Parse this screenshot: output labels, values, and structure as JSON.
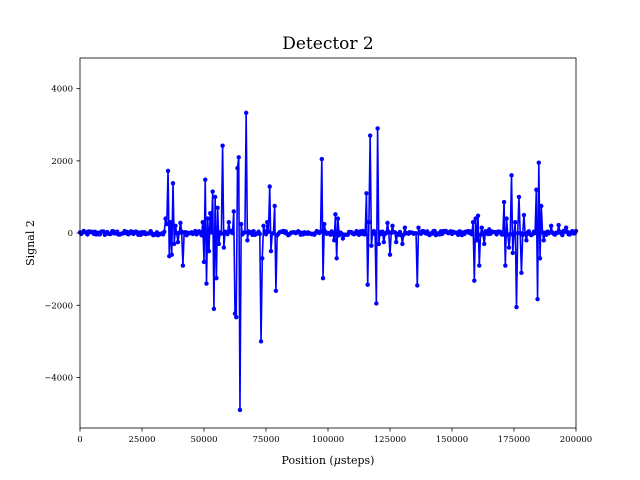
{
  "chart_data": {
    "type": "line",
    "title": "Detector 2",
    "xlabel_prefix": "Position (",
    "xlabel_mu": "μ",
    "xlabel_suffix": "steps)",
    "ylabel": "Signal 2",
    "xlim": [
      0,
      200000
    ],
    "ylim": [
      -5400,
      4850
    ],
    "xticks": [
      0,
      25000,
      50000,
      75000,
      100000,
      125000,
      150000,
      175000,
      200000
    ],
    "xtick_labels": [
      "0",
      "25000",
      "50000",
      "75000",
      "100000",
      "125000",
      "150000",
      "175000",
      "200000"
    ],
    "yticks": [
      -4000,
      -2000,
      0,
      2000,
      4000
    ],
    "ytick_labels": [
      "−4000",
      "−2000",
      "0",
      "2000",
      "4000"
    ],
    "grid": false,
    "legend": "none",
    "line_color": "#0000ff",
    "marker": "circle",
    "series": [
      {
        "name": "",
        "spikes": [
          {
            "x": 34500,
            "y": 400
          },
          {
            "x": 35000,
            "y": 250
          },
          {
            "x": 35500,
            "y": 1720
          },
          {
            "x": 36000,
            "y": -640
          },
          {
            "x": 36500,
            "y": 300
          },
          {
            "x": 37000,
            "y": -600
          },
          {
            "x": 37500,
            "y": 1380
          },
          {
            "x": 38000,
            "y": -300
          },
          {
            "x": 38500,
            "y": 200
          },
          {
            "x": 39500,
            "y": -250
          },
          {
            "x": 40500,
            "y": 280
          },
          {
            "x": 41500,
            "y": -900
          },
          {
            "x": 49500,
            "y": 300
          },
          {
            "x": 50000,
            "y": -800
          },
          {
            "x": 50500,
            "y": 1480
          },
          {
            "x": 51000,
            "y": -1400
          },
          {
            "x": 51500,
            "y": 400
          },
          {
            "x": 52000,
            "y": -500
          },
          {
            "x": 52500,
            "y": 550
          },
          {
            "x": 53500,
            "y": 1150
          },
          {
            "x": 54000,
            "y": -2100
          },
          {
            "x": 54500,
            "y": 1000
          },
          {
            "x": 55000,
            "y": -1250
          },
          {
            "x": 55500,
            "y": 700
          },
          {
            "x": 56000,
            "y": -300
          },
          {
            "x": 57500,
            "y": 2420
          },
          {
            "x": 58000,
            "y": -400
          },
          {
            "x": 60000,
            "y": 300
          },
          {
            "x": 62000,
            "y": 600
          },
          {
            "x": 62500,
            "y": -2230
          },
          {
            "x": 63000,
            "y": -2330
          },
          {
            "x": 63500,
            "y": 1800
          },
          {
            "x": 64000,
            "y": 1100
          },
          {
            "x": 64200,
            "y": 2100
          },
          {
            "x": 64500,
            "y": -4900
          },
          {
            "x": 65000,
            "y": 250
          },
          {
            "x": 67000,
            "y": 3330
          },
          {
            "x": 67500,
            "y": -200
          },
          {
            "x": 73000,
            "y": -3000
          },
          {
            "x": 73500,
            "y": -700
          },
          {
            "x": 74000,
            "y": 200
          },
          {
            "x": 75500,
            "y": 300
          },
          {
            "x": 76500,
            "y": 1290
          },
          {
            "x": 77000,
            "y": -500
          },
          {
            "x": 78500,
            "y": 750
          },
          {
            "x": 79000,
            "y": -1600
          },
          {
            "x": 97500,
            "y": 2050
          },
          {
            "x": 97800,
            "y": -1250
          },
          {
            "x": 98500,
            "y": 250
          },
          {
            "x": 102500,
            "y": -200
          },
          {
            "x": 103000,
            "y": 520
          },
          {
            "x": 103500,
            "y": -700
          },
          {
            "x": 104000,
            "y": 400
          },
          {
            "x": 106000,
            "y": -150
          },
          {
            "x": 115500,
            "y": 1100
          },
          {
            "x": 116000,
            "y": -1430
          },
          {
            "x": 116500,
            "y": 300
          },
          {
            "x": 117000,
            "y": 2700
          },
          {
            "x": 117500,
            "y": -350
          },
          {
            "x": 119500,
            "y": -1950
          },
          {
            "x": 120000,
            "y": 2900
          },
          {
            "x": 120500,
            "y": -300
          },
          {
            "x": 122500,
            "y": -250
          },
          {
            "x": 124000,
            "y": 280
          },
          {
            "x": 125000,
            "y": -600
          },
          {
            "x": 126000,
            "y": 200
          },
          {
            "x": 127500,
            "y": -250
          },
          {
            "x": 130000,
            "y": -300
          },
          {
            "x": 131000,
            "y": 150
          },
          {
            "x": 136000,
            "y": -1450
          },
          {
            "x": 136500,
            "y": 150
          },
          {
            "x": 158500,
            "y": 300
          },
          {
            "x": 159000,
            "y": -1320
          },
          {
            "x": 159500,
            "y": 400
          },
          {
            "x": 160000,
            "y": -200
          },
          {
            "x": 160500,
            "y": 480
          },
          {
            "x": 161000,
            "y": -900
          },
          {
            "x": 162000,
            "y": 150
          },
          {
            "x": 163000,
            "y": -300
          },
          {
            "x": 165000,
            "y": 100
          },
          {
            "x": 171000,
            "y": 860
          },
          {
            "x": 171500,
            "y": -900
          },
          {
            "x": 172000,
            "y": 400
          },
          {
            "x": 173000,
            "y": -400
          },
          {
            "x": 174000,
            "y": 1600
          },
          {
            "x": 174500,
            "y": -550
          },
          {
            "x": 175500,
            "y": 300
          },
          {
            "x": 176000,
            "y": -2050
          },
          {
            "x": 177000,
            "y": 1000
          },
          {
            "x": 178000,
            "y": -1100
          },
          {
            "x": 179000,
            "y": 500
          },
          {
            "x": 180000,
            "y": -200
          },
          {
            "x": 184000,
            "y": 1200
          },
          {
            "x": 184500,
            "y": -1830
          },
          {
            "x": 185000,
            "y": 1950
          },
          {
            "x": 185500,
            "y": -700
          },
          {
            "x": 186000,
            "y": 750
          },
          {
            "x": 187000,
            "y": -200
          },
          {
            "x": 190000,
            "y": 200
          },
          {
            "x": 193000,
            "y": 220
          },
          {
            "x": 196000,
            "y": 150
          }
        ],
        "baseline_noise": 60
      }
    ]
  }
}
